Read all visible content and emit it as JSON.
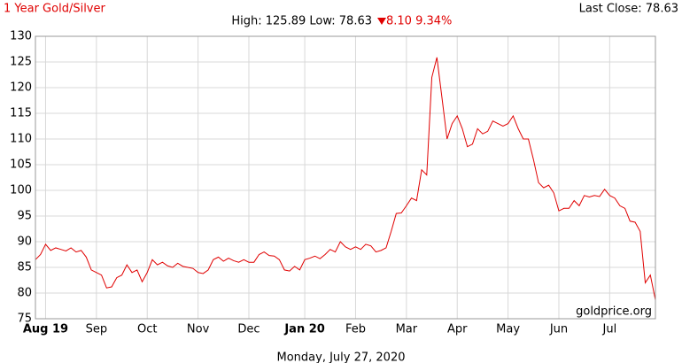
{
  "chart_data": {
    "type": "line",
    "title": "1 Year Gold/Silver",
    "last_close": "Last Close: 78.63",
    "subtitle": "High: 125.89 Low: 78.63",
    "change": "8.10 9.34%",
    "xlabel": "Monday, July 27, 2020",
    "watermark": "goldprice.org",
    "color": "#e00000",
    "grid": true,
    "ylim": [
      75,
      130
    ],
    "yticks": [
      75,
      80,
      85,
      90,
      95,
      100,
      105,
      110,
      115,
      120,
      125,
      130
    ],
    "categories": [
      null,
      null,
      "Aug 19",
      null,
      null,
      null,
      null,
      null,
      null,
      null,
      null,
      null,
      "Sep",
      null,
      null,
      null,
      null,
      null,
      null,
      null,
      null,
      null,
      "Oct",
      null,
      null,
      null,
      null,
      null,
      null,
      null,
      null,
      null,
      "Nov",
      null,
      null,
      null,
      null,
      null,
      null,
      null,
      null,
      null,
      "Dec",
      null,
      null,
      null,
      null,
      null,
      null,
      null,
      null,
      null,
      null,
      "Jan 20",
      null,
      null,
      null,
      null,
      null,
      null,
      null,
      null,
      null,
      "Feb",
      null,
      null,
      null,
      null,
      null,
      null,
      null,
      null,
      null,
      "Mar",
      null,
      null,
      null,
      null,
      null,
      null,
      null,
      null,
      null,
      "Apr",
      null,
      null,
      null,
      null,
      null,
      null,
      null,
      null,
      null,
      "May",
      null,
      null,
      null,
      null,
      null,
      null,
      null,
      null,
      null,
      "Jun",
      null,
      null,
      null,
      null,
      null,
      null,
      null,
      null,
      null,
      "Jul",
      null,
      null,
      null,
      null,
      null,
      null,
      null,
      null,
      null
    ],
    "values": [
      86.5,
      87.5,
      89.5,
      88.3,
      88.8,
      88.5,
      88.2,
      88.8,
      88,
      88.3,
      87,
      84.5,
      84,
      83.5,
      81,
      81.2,
      83,
      83.5,
      85.5,
      84,
      84.5,
      82.2,
      84,
      86.5,
      85.5,
      86,
      85.3,
      85,
      85.8,
      85.2,
      85,
      84.8,
      84,
      83.8,
      84.5,
      86.5,
      87,
      86.2,
      86.8,
      86.3,
      86,
      86.5,
      86,
      86,
      87.5,
      88,
      87.3,
      87.2,
      86.5,
      84.5,
      84.3,
      85.2,
      84.5,
      86.5,
      86.8,
      87.2,
      86.7,
      87.5,
      88.5,
      88,
      90,
      89,
      88.5,
      89,
      88.5,
      89.5,
      89.2,
      88,
      88.3,
      88.8,
      92,
      95.5,
      95.6,
      97,
      98.5,
      98,
      104,
      103,
      122,
      125.89,
      118,
      110,
      113,
      114.5,
      112,
      108.5,
      109,
      112,
      111,
      111.5,
      113.5,
      113,
      112.5,
      113,
      114.5,
      112,
      110,
      110,
      106,
      101.5,
      100.5,
      101,
      99.5,
      96,
      96.5,
      96.5,
      98,
      97,
      99,
      98.7,
      99,
      98.8,
      100.2,
      99,
      98.5,
      97,
      96.5,
      94,
      93.8,
      92,
      82,
      83.5,
      78.63
    ]
  }
}
